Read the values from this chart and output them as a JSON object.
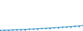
{
  "x": [
    0,
    1,
    2,
    3,
    4,
    5,
    6,
    7,
    8,
    9,
    10,
    11,
    12,
    13,
    14,
    15,
    16,
    17,
    18,
    19,
    20
  ],
  "y": [
    1,
    1.2,
    1.4,
    1.6,
    1.9,
    2.1,
    2.4,
    2.7,
    3.0,
    3.3,
    3.7,
    4.0,
    4.4,
    4.8,
    5.2,
    5.6,
    6.0,
    6.5,
    7.0,
    7.5,
    8.1
  ],
  "line_color": "#2a8fc4",
  "background_color": "#ffffff",
  "marker": "s",
  "marker_size": 0.6,
  "line_width": 0.7,
  "ylim": [
    0,
    45
  ],
  "xlim": [
    0,
    20
  ]
}
